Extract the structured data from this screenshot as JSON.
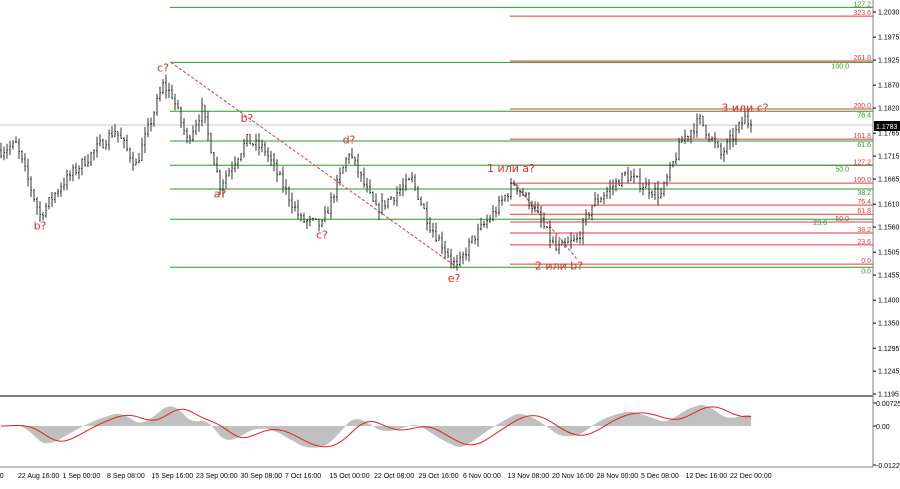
{
  "chart_data": {
    "type": "ohlc",
    "symbol_note": "",
    "price_axis": {
      "ticks": [
        "1.2030",
        "1.1975",
        "1.1925",
        "1.1870",
        "1.1820",
        "1.1765",
        "1.1715",
        "1.1665",
        "1.1610",
        "1.1560",
        "1.1505",
        "1.1455",
        "1.1400",
        "1.1350",
        "1.1295",
        "1.1245",
        "1.1195"
      ],
      "range": [
        1.1195,
        1.205
      ]
    },
    "current_price": "1.1783",
    "time_axis": [
      "8:00",
      "22 Aug 16:00",
      "1 Sep 00:00",
      "8 Sep 08:00",
      "15 Sep 16:00",
      "23 Sep 00:00",
      "30 Sep 08:00",
      "7 Oct 16:00",
      "15 Oct 00:00",
      "22 Oct 08:00",
      "29 Oct 16:00",
      "6 Nov 00:00",
      "13 Nov 08:00",
      "20 Nov 16:00",
      "28 Nov 00:00",
      "5 Dec 08:00",
      "12 Dec 16:00",
      "22 Dec 00:00"
    ],
    "price_swings": [
      [
        0,
        1.1728
      ],
      [
        5,
        1.174
      ],
      [
        13,
        1.1586
      ],
      [
        20,
        1.1652
      ],
      [
        38,
        1.1772
      ],
      [
        45,
        1.1696
      ],
      [
        54,
        1.187
      ],
      [
        57,
        1.1849
      ],
      [
        62,
        1.175
      ],
      [
        67,
        1.1816
      ],
      [
        73,
        1.1652
      ],
      [
        82,
        1.175
      ],
      [
        88,
        1.1728
      ],
      [
        100,
        1.1575
      ],
      [
        107,
        1.1564
      ],
      [
        116,
        1.1724
      ],
      [
        125,
        1.1597
      ],
      [
        137,
        1.1663
      ],
      [
        143,
        1.1564
      ],
      [
        152,
        1.147
      ],
      [
        157,
        1.1532
      ],
      [
        165,
        1.1597
      ],
      [
        171,
        1.1656
      ],
      [
        177,
        1.1608
      ],
      [
        185,
        1.151
      ],
      [
        192,
        1.1532
      ],
      [
        197,
        1.1608
      ],
      [
        208,
        1.1674
      ],
      [
        220,
        1.163
      ],
      [
        227,
        1.175
      ],
      [
        233,
        1.1794
      ],
      [
        240,
        1.1717
      ],
      [
        248,
        1.1798
      ],
      [
        250,
        1.1783
      ]
    ],
    "fib_green": {
      "color": "#2a9a2a",
      "levels": [
        {
          "label": "127.2",
          "price": 1.204
        },
        {
          "label": "100.0",
          "price": 1.192
        },
        {
          "label": "76.4",
          "price": 1.1813
        },
        {
          "label": "61.6",
          "price": 1.1748
        },
        {
          "label": "50.0",
          "price": 1.1695
        },
        {
          "label": "38.2",
          "price": 1.1643
        },
        {
          "label": "23.6",
          "price": 1.1577
        },
        {
          "label": "0.0",
          "price": 1.1472
        }
      ]
    },
    "fib_red": {
      "color": "#e03a3a",
      "levels": [
        {
          "label": "323.6",
          "price": 1.2021
        },
        {
          "label": "261.8",
          "price": 1.1923
        },
        {
          "label": "200.0",
          "price": 1.1818
        },
        {
          "label": "161.8",
          "price": 1.1752
        },
        {
          "label": "127.2",
          "price": 1.1695
        },
        {
          "label": "100.0",
          "price": 1.1656
        },
        {
          "label": "76.4",
          "price": 1.1608
        },
        {
          "label": "61.8",
          "price": 1.1588
        },
        {
          "label": "50.0",
          "price": 1.1571
        },
        {
          "label": "38.2",
          "price": 1.1547
        },
        {
          "label": "23.6",
          "price": 1.1521
        },
        {
          "label": "0.0",
          "price": 1.1479
        }
      ]
    },
    "wave_labels": [
      {
        "text": "c?",
        "bar": 54,
        "price": 1.19
      },
      {
        "text": "b?",
        "bar": 13,
        "price": 1.1555
      },
      {
        "text": "a?",
        "bar": 73,
        "price": 1.1625
      },
      {
        "text": "b?",
        "bar": 82,
        "price": 1.179
      },
      {
        "text": "d?",
        "bar": 116,
        "price": 1.1743
      },
      {
        "text": "c?",
        "bar": 107,
        "price": 1.1535
      },
      {
        "text": "e?",
        "bar": 151,
        "price": 1.144
      },
      {
        "text": "1 или a?",
        "bar": 170,
        "price": 1.168
      },
      {
        "text": "2 или b?",
        "bar": 186,
        "price": 1.1467
      },
      {
        "text": "3 или c?",
        "bar": 248,
        "price": 1.1813
      }
    ],
    "oscillator": {
      "ticks": [
        "0.00725",
        "0.00",
        "-0.01226"
      ],
      "range": [
        -0.01226,
        0.00725
      ],
      "histogram_color": "#c0c0c0",
      "signal_color": "#e02020"
    }
  }
}
